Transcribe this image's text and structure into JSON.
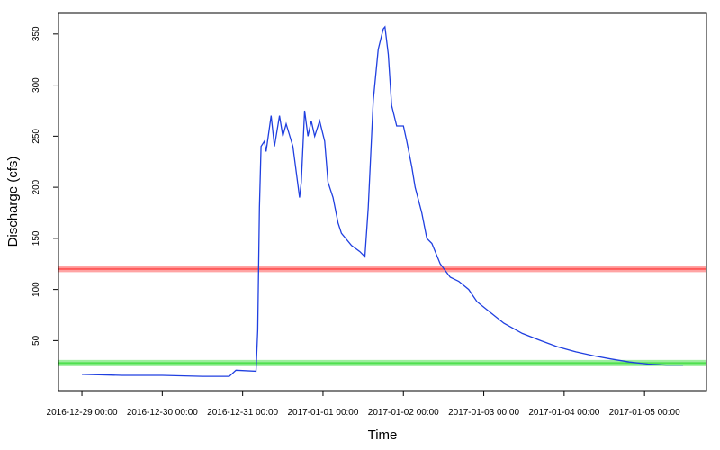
{
  "chart_data": {
    "type": "line",
    "x_label": "Time",
    "y_label": "Discharge (cfs)",
    "color": "#1f3fe0",
    "x": [
      "2016-12-29 00:00",
      "2016-12-29 12:00",
      "2016-12-30 00:00",
      "2016-12-30 12:00",
      "2016-12-30 20:00",
      "2016-12-30 22:00",
      "2016-12-31 04:00",
      "2016-12-31 04:30",
      "2016-12-31 05:00",
      "2016-12-31 05:30",
      "2016-12-31 06:30",
      "2016-12-31 07:00",
      "2016-12-31 08:30",
      "2016-12-31 09:30",
      "2016-12-31 11:00",
      "2016-12-31 12:00",
      "2016-12-31 13:00",
      "2016-12-31 15:00",
      "2016-12-31 16:00",
      "2016-12-31 17:00",
      "2016-12-31 17:30",
      "2016-12-31 18:30",
      "2016-12-31 19:30",
      "2016-12-31 20:30",
      "2016-12-31 21:30",
      "2016-12-31 23:00",
      "2017-01-01 00:30",
      "2017-01-01 01:30",
      "2017-01-01 03:00",
      "2017-01-01 04:30",
      "2017-01-01 05:30",
      "2017-01-01 08:30",
      "2017-01-01 11:00",
      "2017-01-01 12:30",
      "2017-01-01 13:30",
      "2017-01-01 15:00",
      "2017-01-01 16:30",
      "2017-01-01 18:00",
      "2017-01-01 18:30",
      "2017-01-01 19:30",
      "2017-01-01 20:30",
      "2017-01-01 22:00",
      "2017-01-02 00:00",
      "2017-01-02 01:00",
      "2017-01-02 02:30",
      "2017-01-02 03:30",
      "2017-01-02 05:30",
      "2017-01-02 07:00",
      "2017-01-02 08:30",
      "2017-01-02 11:00",
      "2017-01-02 14:00",
      "2017-01-02 16:30",
      "2017-01-02 19:30",
      "2017-01-02 22:00",
      "2017-01-03 01:00",
      "2017-01-03 06:00",
      "2017-01-03 11:30",
      "2017-01-03 17:00",
      "2017-01-03 22:00",
      "2017-01-04 03:30",
      "2017-01-04 09:00",
      "2017-01-04 14:00",
      "2017-01-04 19:30",
      "2017-01-05 01:00",
      "2017-01-05 06:30",
      "2017-01-05 11:30"
    ],
    "values": [
      17,
      16,
      16,
      15,
      15,
      21,
      20,
      60,
      180,
      240,
      245,
      235,
      270,
      240,
      270,
      250,
      262,
      240,
      215,
      190,
      205,
      275,
      250,
      265,
      250,
      265,
      245,
      205,
      190,
      165,
      155,
      143,
      137,
      132,
      180,
      285,
      335,
      355,
      357,
      330,
      280,
      260,
      260,
      245,
      220,
      200,
      175,
      150,
      145,
      125,
      112,
      108,
      100,
      88,
      80,
      67,
      57,
      50,
      44,
      39,
      35,
      32,
      29,
      27,
      26,
      26
    ],
    "xlim": [
      "2016-12-28 17:00",
      "2017-01-05 18:30"
    ],
    "xticks": [
      "2016-12-29 00:00",
      "2016-12-30 00:00",
      "2016-12-31 00:00",
      "2017-01-01 00:00",
      "2017-01-02 00:00",
      "2017-01-03 00:00",
      "2017-01-04 00:00",
      "2017-01-05 00:00"
    ],
    "ylim": [
      1,
      371
    ],
    "yticks": [
      50,
      100,
      150,
      200,
      250,
      300,
      350
    ],
    "hlines": [
      {
        "value": 120,
        "color": "#ff5a5a"
      },
      {
        "value": 28,
        "color": "#4fe04f"
      }
    ]
  }
}
